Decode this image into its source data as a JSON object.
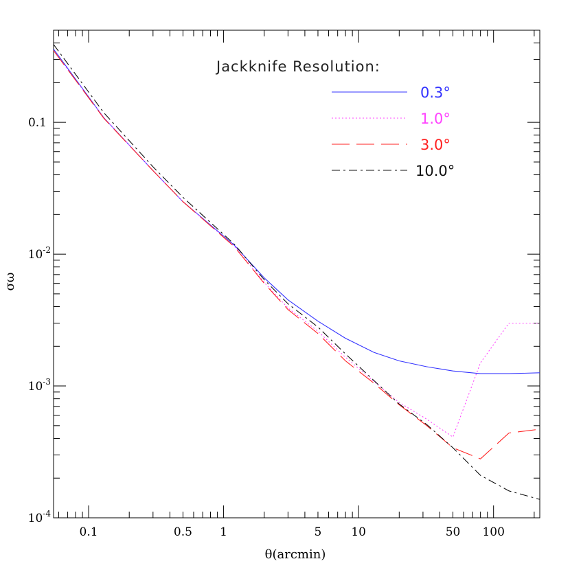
{
  "chart_data": {
    "type": "line",
    "title": "",
    "xlabel": "θ(arcmin)",
    "ylabel": "σω",
    "xscale": "log",
    "yscale": "log",
    "xlim": [
      0.055,
      220
    ],
    "ylim": [
      0.0001,
      0.5
    ],
    "grid": false,
    "legend": {
      "title": "Jackknife Resolution:",
      "placement": "top-right"
    },
    "x_tick_labels": [
      {
        "value": 0.1,
        "label": "0.1"
      },
      {
        "value": 0.5,
        "label": "0.5"
      },
      {
        "value": 1,
        "label": "1"
      },
      {
        "value": 5,
        "label": "5"
      },
      {
        "value": 10,
        "label": "10"
      },
      {
        "value": 50,
        "label": "50"
      },
      {
        "value": 100,
        "label": "100"
      }
    ],
    "y_tick_labels": [
      {
        "value": 0.1,
        "base": "0.1",
        "exp": ""
      },
      {
        "value": 0.01,
        "base": "10",
        "exp": "-2"
      },
      {
        "value": 0.001,
        "base": "10",
        "exp": "-3"
      },
      {
        "value": 0.0001,
        "base": "10",
        "exp": "-4"
      }
    ],
    "series": [
      {
        "name": "0.3°",
        "color": "#3333ff",
        "dash": "solid",
        "x": [
          0.055,
          0.13,
          0.3,
          0.5,
          1.2,
          2.0,
          3.0,
          5.0,
          8.0,
          13,
          20,
          32,
          50,
          80,
          130,
          220
        ],
        "y": [
          0.36,
          0.108,
          0.043,
          0.025,
          0.0117,
          0.0066,
          0.0045,
          0.0031,
          0.0023,
          0.0018,
          0.00155,
          0.0014,
          0.0013,
          0.00124,
          0.00124,
          0.00126
        ]
      },
      {
        "name": "1.0°",
        "color": "#ff44ff",
        "dash": "dotted",
        "x": [
          0.055,
          0.13,
          0.3,
          0.5,
          1.2,
          2.0,
          3.0,
          5.0,
          8.0,
          13,
          20,
          32,
          50,
          80,
          130,
          220
        ],
        "y": [
          0.35,
          0.108,
          0.043,
          0.025,
          0.0115,
          0.0061,
          0.0039,
          0.0026,
          0.00165,
          0.00108,
          0.00075,
          0.00056,
          0.00041,
          0.0015,
          0.003,
          0.003
        ]
      },
      {
        "name": "3.0°",
        "color": "#ff2222",
        "dash": "long-dash",
        "x": [
          0.055,
          0.13,
          0.3,
          0.5,
          1.2,
          2.0,
          3.0,
          5.0,
          8.0,
          13,
          20,
          32,
          50,
          80,
          130,
          220
        ],
        "y": [
          0.35,
          0.107,
          0.043,
          0.025,
          0.0114,
          0.006,
          0.0038,
          0.0025,
          0.00155,
          0.00105,
          0.00072,
          0.0005,
          0.00034,
          0.00028,
          0.00044,
          0.00047
        ]
      },
      {
        "name": "10.0°",
        "color": "#111111",
        "dash": "dash-dot",
        "x": [
          0.055,
          0.13,
          0.3,
          0.5,
          1.2,
          2.0,
          3.0,
          5.0,
          8.0,
          13,
          20,
          32,
          50,
          80,
          130,
          220
        ],
        "y": [
          0.39,
          0.118,
          0.046,
          0.027,
          0.0119,
          0.0064,
          0.0042,
          0.0028,
          0.00175,
          0.0011,
          0.00073,
          0.00051,
          0.00034,
          0.00021,
          0.00016,
          0.000138
        ]
      }
    ]
  }
}
